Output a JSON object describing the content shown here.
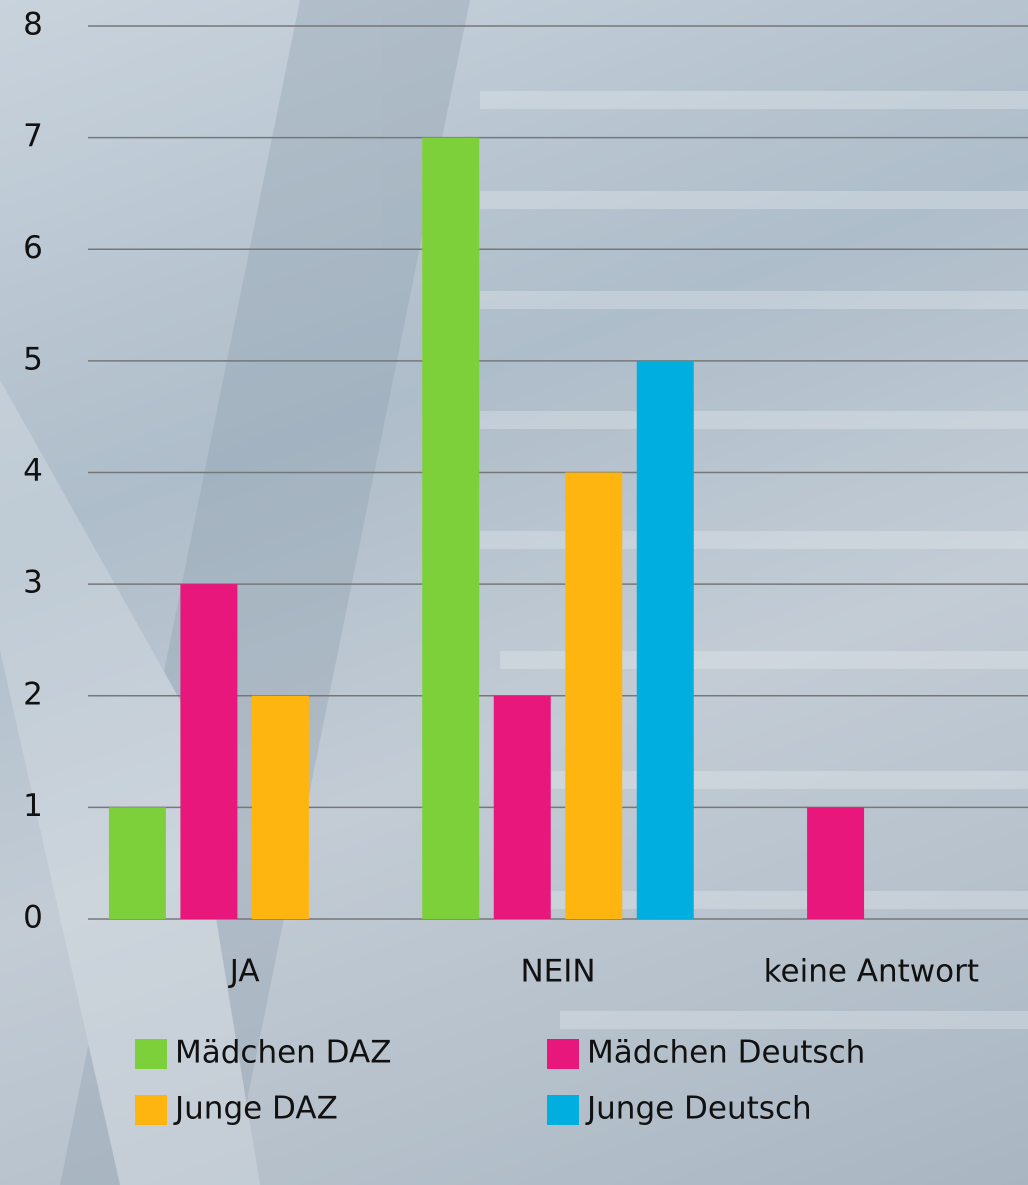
{
  "chart_data": {
    "type": "bar",
    "categories": [
      "JA",
      "NEIN",
      "keine Antwort"
    ],
    "series": [
      {
        "name": "Mädchen DAZ",
        "color": "#7ed03a",
        "values": [
          1,
          7,
          0
        ]
      },
      {
        "name": "Mädchen Deutsch",
        "color": "#e8177b",
        "values": [
          3,
          2,
          1
        ]
      },
      {
        "name": "Junge DAZ",
        "color": "#ffb50f",
        "values": [
          2,
          4,
          0
        ]
      },
      {
        "name": "Junge Deutsch",
        "color": "#00aee0",
        "values": [
          0,
          5,
          0
        ]
      }
    ],
    "ylim": [
      0,
      8
    ],
    "yticks": [
      0,
      1,
      2,
      3,
      4,
      5,
      6,
      7,
      8
    ],
    "grid": true,
    "legend": "bottom"
  }
}
